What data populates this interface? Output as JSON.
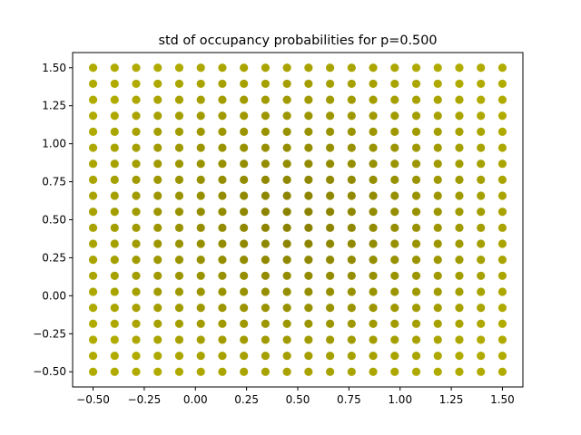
{
  "chart_data": {
    "type": "scatter",
    "title": "std of occupancy probabilities for p=0.500",
    "xlabel": "",
    "ylabel": "",
    "xlim": [
      -0.6,
      1.6
    ],
    "ylim": [
      -0.6,
      1.6
    ],
    "x_ticks": [
      -0.5,
      -0.25,
      0.0,
      0.25,
      0.5,
      0.75,
      1.0,
      1.25,
      1.5
    ],
    "x_tick_labels": [
      "−0.50",
      "−0.25",
      "0.00",
      "0.25",
      "0.50",
      "0.75",
      "1.00",
      "1.25",
      "1.50"
    ],
    "y_ticks": [
      -0.5,
      -0.25,
      0.0,
      0.25,
      0.5,
      0.75,
      1.0,
      1.25,
      1.5
    ],
    "y_tick_labels": [
      "−0.50",
      "−0.25",
      "0.00",
      "0.25",
      "0.50",
      "0.75",
      "1.00",
      "1.25",
      "1.50"
    ],
    "grid": {
      "x_start": -0.5,
      "x_end": 1.5,
      "x_count": 20,
      "y_start": -0.5,
      "y_end": 1.5,
      "y_count": 20
    },
    "point_color_range": {
      "edge_color": "#b1ab00",
      "center_color": "#8a8200"
    },
    "grid_lines": false,
    "legend": "none"
  }
}
